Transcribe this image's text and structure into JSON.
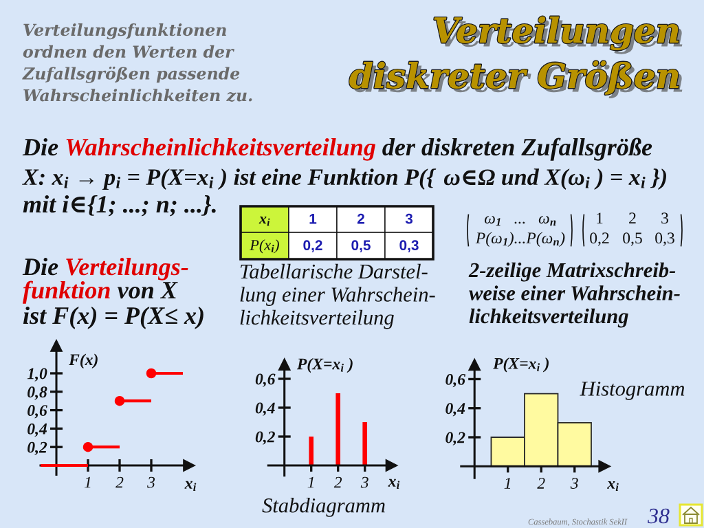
{
  "chart_data": [
    {
      "type": "other",
      "title": "Verteilungen\ndiskreter Größen",
      "subtitle": "Verteilungsfunktionen\nordnen den Werten der\nZufallsgrößen passende\nWahrscheinlichkeiten zu.",
      "annotations": [
        "Die",
        "Wahrscheinlichkeitsverteilung",
        "der diskreten Zufallsgröße",
        "X: x$_{i}$ → p$_{i}$ = P(X=x$_{i}$ ) ist eine Funktion P({",
        "ω∈Ω",
        "und X(ω$_{i}$ ) = x$_{i}$ })",
        "mit i∈{1; ...; n; ...}.",
        "Die",
        "Verteilungs-",
        "funktion",
        "von X",
        "ist F(x) = P(X≤ x)",
        "x$_{i}$",
        "1",
        "2",
        "3",
        "P(x$_{i}$)",
        "0,2",
        "0,5",
        "0,3",
        "Tabellarische Darstel-\nlung einer Wahrschein-\nlichkeitsverteilung",
        "ω$_{1}$   ...   ω$_{n}$",
        "P(ω$_{1}$)...P(ω$_{n}$)",
        "1",
        "2",
        "3",
        "0,2",
        "0,5",
        "0,3",
        "2-zeilige Matrixschreib-\nweise einer Wahrschein-\nlichkeitsverteilung",
        "Cassebaum, Stochastik SekII",
        "38"
      ]
    },
    {
      "type": "step",
      "ylabel": "F(x)",
      "xlabel": "x$_{i}$",
      "x": [
        -0.5,
        1,
        2,
        3,
        4
      ],
      "values": [
        0,
        0.2,
        0.7,
        1.0,
        1.0
      ],
      "color": "#ff0000",
      "marker": "circle",
      "xlim": [
        -0.5,
        4.2
      ],
      "ylim": [
        -0.1,
        1.3
      ],
      "xticks": [
        1,
        2,
        3
      ],
      "yticks": [
        {
          "value": 0.2,
          "label": "0,2"
        },
        {
          "value": 0.4,
          "label": "0,4"
        },
        {
          "value": 0.6,
          "label": "0,6"
        },
        {
          "value": 0.8,
          "label": "0,8"
        },
        {
          "value": 1.0,
          "label": "1,0"
        }
      ]
    },
    {
      "type": "bar",
      "ylabel": "P(X=x$_{i}$ )",
      "xlabel": "x$_{i}$",
      "x": [
        1,
        2,
        3
      ],
      "values": [
        0.2,
        0.5,
        0.3
      ],
      "color": "#ff0000",
      "xlim": [
        -0.6,
        4.0
      ],
      "ylim": [
        -0.07,
        0.7
      ],
      "xticks": [
        1,
        2,
        3
      ],
      "yticks": [
        {
          "value": 0.2,
          "label": "0,2"
        },
        {
          "value": 0.4,
          "label": "0,4"
        },
        {
          "value": 0.6,
          "label": "0,6"
        }
      ],
      "annotations": [
        "Stabdiagramm"
      ]
    },
    {
      "type": "histogram",
      "ylabel": "P(X=x$_{i}$ )",
      "xlabel": "x$_{i}$",
      "bins": [
        0.5,
        1.5,
        2.5,
        3.5
      ],
      "values": [
        0.2,
        0.5,
        0.3
      ],
      "color": "#fffaa0",
      "xlim": [
        -0.4,
        3.9
      ],
      "ylim": [
        -0.08,
        0.7
      ],
      "xticks": [
        1,
        2,
        3
      ],
      "yticks": [
        {
          "value": 0.2,
          "label": "0,2"
        },
        {
          "value": 0.4,
          "label": "0,4"
        },
        {
          "value": 0.6,
          "label": "0,6"
        }
      ],
      "annotations": [
        "Histogramm"
      ]
    }
  ]
}
